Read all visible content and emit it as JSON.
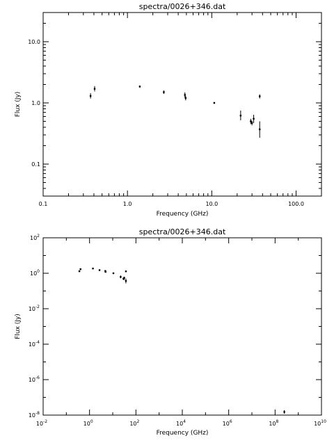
{
  "chart_data": [
    {
      "type": "scatter",
      "title": "spectra/0026+346.dat",
      "xlabel": "Frequency (GHz)",
      "ylabel": "Flux (Jy)",
      "xscale": "log",
      "yscale": "log",
      "xlim": [
        0.1,
        200
      ],
      "ylim": [
        0.03,
        30
      ],
      "xticks": [
        {
          "value": 0.1,
          "label": "0.1"
        },
        {
          "value": 1,
          "label": "1.0"
        },
        {
          "value": 10,
          "label": "10.0"
        },
        {
          "value": 100,
          "label": "100.0"
        }
      ],
      "yticks": [
        {
          "value": 0.1,
          "label": "0.1"
        },
        {
          "value": 1,
          "label": "1.0"
        },
        {
          "value": 10,
          "label": "10.0"
        }
      ],
      "error_bars": true,
      "points": [
        {
          "x": 0.365,
          "y": 1.3,
          "ylo": 1.18,
          "yhi": 1.44
        },
        {
          "x": 0.408,
          "y": 1.7,
          "ylo": 1.54,
          "yhi": 1.88
        },
        {
          "x": 1.4,
          "y": 1.85,
          "ylo": 1.78,
          "yhi": 1.92
        },
        {
          "x": 2.7,
          "y": 1.5,
          "ylo": 1.4,
          "yhi": 1.6
        },
        {
          "x": 4.8,
          "y": 1.35,
          "ylo": 1.22,
          "yhi": 1.48
        },
        {
          "x": 4.9,
          "y": 1.2,
          "ylo": 1.1,
          "yhi": 1.3
        },
        {
          "x": 10.7,
          "y": 1.0,
          "ylo": 0.97,
          "yhi": 1.03
        },
        {
          "x": 22,
          "y": 0.62,
          "ylo": 0.52,
          "yhi": 0.75
        },
        {
          "x": 29,
          "y": 0.5,
          "ylo": 0.45,
          "yhi": 0.55
        },
        {
          "x": 30,
          "y": 0.47,
          "ylo": 0.43,
          "yhi": 0.51
        },
        {
          "x": 31.4,
          "y": 0.55,
          "ylo": 0.47,
          "yhi": 0.64
        },
        {
          "x": 37,
          "y": 1.28,
          "ylo": 1.18,
          "yhi": 1.38
        },
        {
          "x": 37,
          "y": 0.37,
          "ylo": 0.27,
          "yhi": 0.5
        }
      ]
    },
    {
      "type": "scatter",
      "title": "spectra/0026+346.dat",
      "xlabel": "Frequency (GHz)",
      "ylabel": "Flux (Jy)",
      "xscale": "log",
      "yscale": "log",
      "xlim": [
        0.01,
        10000000000.0
      ],
      "ylim": [
        1e-08,
        100
      ],
      "xticks": [
        {
          "value": 0.01,
          "base": "10",
          "exp": "-2"
        },
        {
          "value": 1,
          "base": "10",
          "exp": "0"
        },
        {
          "value": 100,
          "base": "10",
          "exp": "2"
        },
        {
          "value": 10000,
          "base": "10",
          "exp": "4"
        },
        {
          "value": 1000000,
          "base": "10",
          "exp": "6"
        },
        {
          "value": 100000000,
          "base": "10",
          "exp": "8"
        },
        {
          "value": 10000000000,
          "base": "10",
          "exp": "10"
        }
      ],
      "yticks": [
        {
          "value": 1e-08,
          "base": "10",
          "exp": "-8"
        },
        {
          "value": 1e-06,
          "base": "10",
          "exp": "-6"
        },
        {
          "value": 0.0001,
          "base": "10",
          "exp": "-4"
        },
        {
          "value": 0.01,
          "base": "10",
          "exp": "-2"
        },
        {
          "value": 1,
          "base": "10",
          "exp": "0"
        },
        {
          "value": 100,
          "base": "10",
          "exp": "2"
        }
      ],
      "error_bars": true,
      "points": [
        {
          "x": 0.365,
          "y": 1.3,
          "ylo": 1.18,
          "yhi": 1.44
        },
        {
          "x": 0.408,
          "y": 1.7,
          "ylo": 1.54,
          "yhi": 1.88
        },
        {
          "x": 1.4,
          "y": 1.85,
          "ylo": 1.78,
          "yhi": 1.92
        },
        {
          "x": 2.7,
          "y": 1.5,
          "ylo": 1.4,
          "yhi": 1.6
        },
        {
          "x": 4.8,
          "y": 1.35,
          "ylo": 1.22,
          "yhi": 1.48
        },
        {
          "x": 4.9,
          "y": 1.2,
          "ylo": 1.1,
          "yhi": 1.3
        },
        {
          "x": 10.7,
          "y": 1.0,
          "ylo": 0.97,
          "yhi": 1.03
        },
        {
          "x": 22,
          "y": 0.62,
          "ylo": 0.52,
          "yhi": 0.75
        },
        {
          "x": 29,
          "y": 0.5,
          "ylo": 0.45,
          "yhi": 0.55
        },
        {
          "x": 30,
          "y": 0.47,
          "ylo": 0.43,
          "yhi": 0.51
        },
        {
          "x": 31.4,
          "y": 0.55,
          "ylo": 0.47,
          "yhi": 0.64
        },
        {
          "x": 37,
          "y": 1.28,
          "ylo": 1.18,
          "yhi": 1.38
        },
        {
          "x": 37,
          "y": 0.37,
          "ylo": 0.27,
          "yhi": 0.5
        },
        {
          "x": 250000000,
          "y": 1.5e-08,
          "ylo": 1.2e-08,
          "yhi": 1.9e-08
        }
      ]
    }
  ]
}
